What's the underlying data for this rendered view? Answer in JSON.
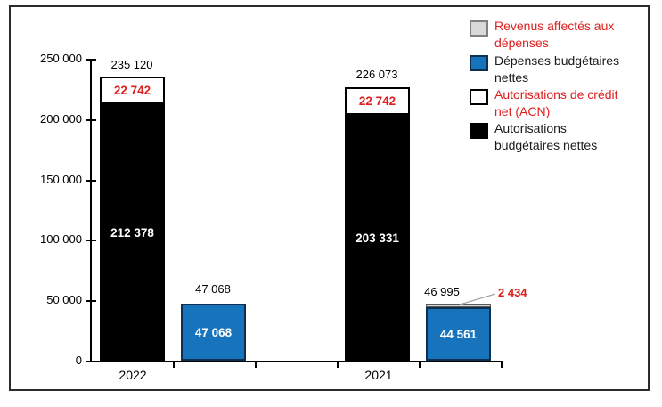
{
  "chart_data": {
    "type": "bar",
    "title": "",
    "categories": [
      "2022",
      "2021"
    ],
    "series": [
      {
        "name": "Autorisations budgétaires nettes",
        "color": "#000000",
        "values": [
          212378,
          203331
        ]
      },
      {
        "name": "Autorisations de crédit net (ACN)",
        "color": "#ffffff",
        "values": [
          22742,
          22742
        ]
      },
      {
        "name": "Dépenses budgétaires nettes",
        "color": "#1673bc",
        "values": [
          47068,
          44561
        ]
      },
      {
        "name": "Revenus affectés aux dépenses",
        "color": "#d9d9d9",
        "values": [
          0,
          2434
        ]
      }
    ],
    "stacked_bar_totals": {
      "autorisations": [
        235120,
        226073
      ],
      "depenses": [
        47068,
        46995
      ]
    },
    "ylim": [
      0,
      250000
    ],
    "ytick_step": 50000,
    "grid": false,
    "legend_position": "top-right"
  },
  "axes": {
    "y_ticks": [
      "250 000",
      "200 000",
      "150 000",
      "100 000",
      "50 000",
      "0"
    ],
    "categories": [
      "2022",
      "2021"
    ]
  },
  "legend": {
    "items": [
      {
        "line1": "Revenus affectés aux",
        "line2": "dépenses",
        "swatch_color": "#d9d9d9",
        "text_color": "#dd1e1e"
      },
      {
        "line1": "Dépenses budgétaires",
        "line2": "nettes",
        "swatch_color": "#1673bc",
        "text_color": "#1a1a1a"
      },
      {
        "line1": "Autorisations de crédit",
        "line2": "net (ACN)",
        "swatch_color": "#ffffff",
        "text_color": "#dd1e1e"
      },
      {
        "line1": "Autorisations",
        "line2": "budgétaires nettes",
        "swatch_color": "#000000",
        "text_color": "#1a1a1a"
      }
    ]
  },
  "labels": {
    "total_auth_2022": "235 120",
    "acn_2022": "22 742",
    "auth_net_2022": "212 378",
    "total_dep_2022": "47 068",
    "dep_net_2022": "47 068",
    "total_auth_2021": "226 073",
    "acn_2021": "22 742",
    "auth_net_2021": "203 331",
    "total_dep_2021": "46 995",
    "dep_net_2021": "44 561",
    "rev_2021_annotation": "2 434"
  },
  "colors": {
    "red_text": "#dd1e1e",
    "blue_bar": "#1673bc",
    "gray_bar": "#d9d9d9",
    "black_bar": "#000000"
  }
}
